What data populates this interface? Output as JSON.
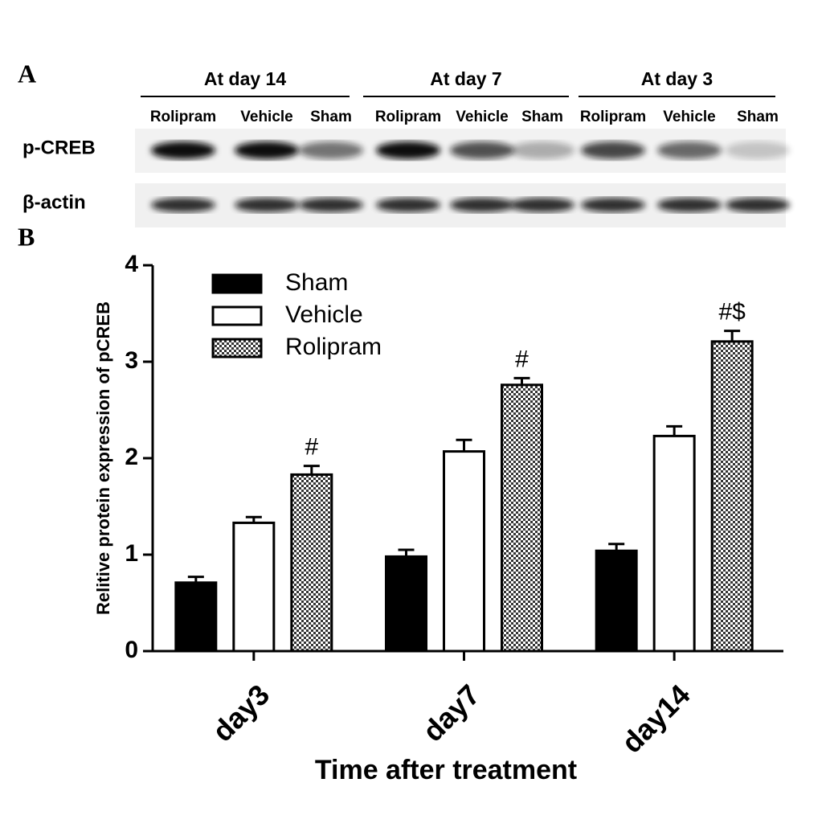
{
  "panel_a": {
    "label": "A",
    "groups": [
      {
        "title": "At day  14",
        "lanes": [
          "Rolipram",
          "Vehicle",
          "Sham"
        ]
      },
      {
        "title": "At day  7",
        "lanes": [
          "Rolipram",
          "Vehicle",
          "Sham"
        ]
      },
      {
        "title": "At day  3",
        "lanes": [
          "Rolipram",
          "Vehicle",
          "Sham"
        ]
      }
    ],
    "rows": [
      "p-CREB",
      "β-actin"
    ]
  },
  "chart_data": {
    "type": "bar",
    "panel_label": "B",
    "x_label": "Time after treatment",
    "y_label": "Relitive protein expression of pCREB",
    "categories": [
      "day3",
      "day7",
      "day14"
    ],
    "series": [
      {
        "name": "Sham",
        "color": "#000000",
        "fill_pattern": "solid",
        "values": [
          0.71,
          0.98,
          1.04
        ],
        "errors": [
          0.06,
          0.07,
          0.07
        ]
      },
      {
        "name": "Vehicle",
        "color": "#ffffff",
        "fill_pattern": "solid",
        "values": [
          1.33,
          2.07,
          2.23
        ],
        "errors": [
          0.06,
          0.12,
          0.1
        ]
      },
      {
        "name": "Rolipram",
        "color": "#555555",
        "fill_pattern": "checker",
        "values": [
          1.83,
          2.76,
          3.21
        ],
        "errors": [
          0.09,
          0.07,
          0.11
        ],
        "annotations": [
          "#",
          "#",
          "#$"
        ]
      }
    ],
    "ylim": [
      0,
      4
    ],
    "yticks": [
      0,
      1,
      2,
      3,
      4
    ],
    "grid": false,
    "legend": "upper left"
  }
}
